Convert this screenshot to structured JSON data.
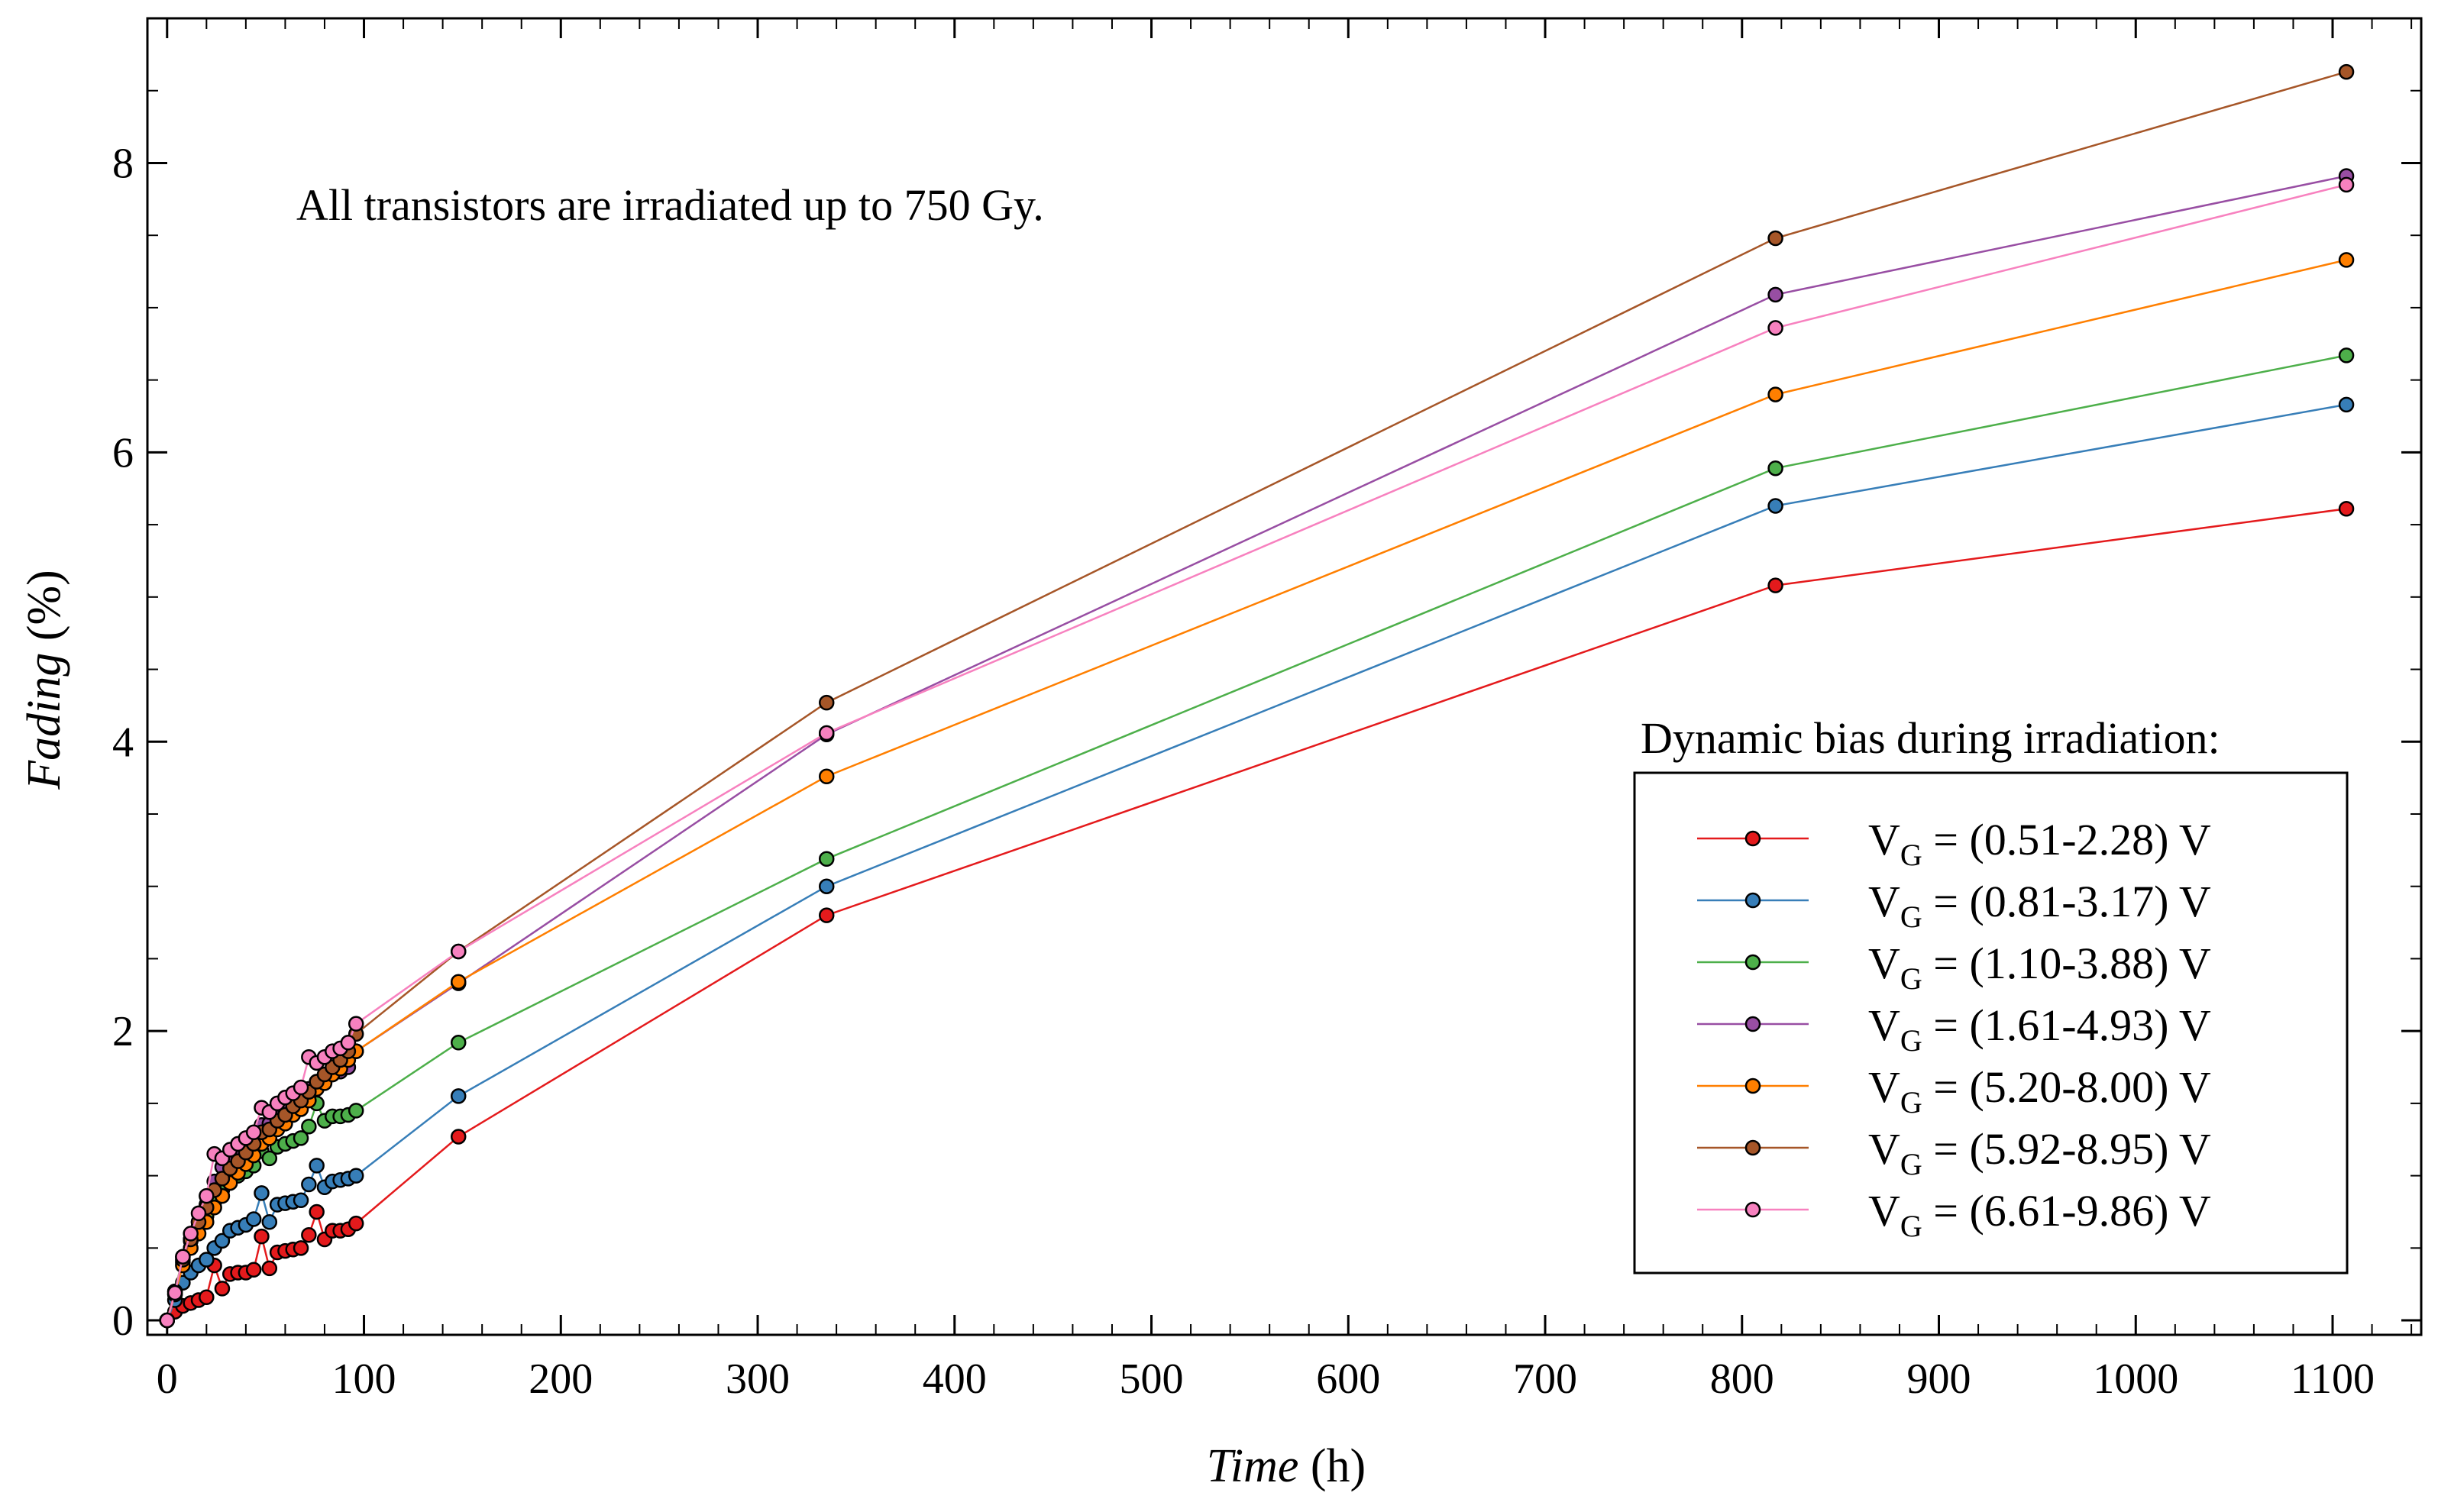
{
  "chart_data": {
    "type": "line",
    "title": "",
    "annotation": "All transistors are irradiated up to 750 Gy.",
    "xlabel": {
      "italic": "Time",
      "rest": " (h)"
    },
    "ylabel": {
      "italic": "Fading",
      "rest": " (%)"
    },
    "xlim": [
      -10,
      1145
    ],
    "ylim": [
      -0.1,
      9.0
    ],
    "xticks": [
      0,
      100,
      200,
      300,
      400,
      500,
      600,
      700,
      800,
      900,
      1000,
      1100
    ],
    "yticks": [
      0,
      2,
      4,
      6,
      8
    ],
    "legend_title": "Dynamic bias during irradiation:",
    "legend_position": "bottom-right",
    "x": [
      0,
      4,
      8,
      12,
      16,
      20,
      24,
      28,
      32,
      36,
      40,
      44,
      48,
      52,
      56,
      60,
      64,
      68,
      72,
      76,
      80,
      84,
      88,
      92,
      96,
      148,
      335,
      817,
      1107
    ],
    "series": [
      {
        "name": "(0.51-2.28)",
        "label_prefix": "V",
        "label_sub": "G",
        "label_text": " = (0.51-2.28) V",
        "color": "#e41a1c",
        "values": [
          0.0,
          0.06,
          0.1,
          0.12,
          0.14,
          0.16,
          0.38,
          0.22,
          0.32,
          0.33,
          0.33,
          0.35,
          0.58,
          0.36,
          0.47,
          0.48,
          0.49,
          0.5,
          0.59,
          0.75,
          0.56,
          0.62,
          0.62,
          0.63,
          0.67,
          1.27,
          2.8,
          5.08,
          5.61
        ]
      },
      {
        "name": "(0.81-3.17)",
        "label_prefix": "V",
        "label_sub": "G",
        "label_text": " = (0.81-3.17) V",
        "color": "#377eb8",
        "values": [
          0.0,
          0.14,
          0.26,
          0.33,
          0.38,
          0.42,
          0.5,
          0.55,
          0.62,
          0.64,
          0.66,
          0.7,
          0.88,
          0.68,
          0.8,
          0.81,
          0.82,
          0.83,
          0.94,
          1.07,
          0.92,
          0.96,
          0.97,
          0.98,
          1.0,
          1.55,
          3.0,
          5.63,
          6.33
        ]
      },
      {
        "name": "(1.10-3.88)",
        "label_prefix": "V",
        "label_sub": "G",
        "label_text": " = (1.10-3.88) V",
        "color": "#4daf4a",
        "values": [
          0.0,
          0.2,
          0.44,
          0.56,
          0.65,
          0.72,
          0.82,
          0.9,
          0.96,
          1.0,
          1.03,
          1.07,
          1.17,
          1.12,
          1.2,
          1.22,
          1.24,
          1.26,
          1.34,
          1.5,
          1.38,
          1.41,
          1.41,
          1.42,
          1.45,
          1.92,
          3.19,
          5.89,
          6.67
        ]
      },
      {
        "name": "(1.61-4.93)",
        "label_prefix": "V",
        "label_sub": "G",
        "label_text": " = (1.61-4.93) V",
        "color": "#984ea3",
        "values": [
          0.0,
          0.18,
          0.4,
          0.55,
          0.68,
          0.8,
          0.96,
          1.06,
          1.1,
          1.15,
          1.2,
          1.25,
          1.35,
          1.36,
          1.42,
          1.45,
          1.5,
          1.55,
          1.6,
          1.65,
          1.68,
          1.7,
          1.72,
          1.75,
          1.86,
          2.33,
          4.05,
          7.09,
          7.91
        ]
      },
      {
        "name": "(5.20-8.00)",
        "label_prefix": "V",
        "label_sub": "G",
        "label_text": " = (5.20-8.00) V",
        "color": "#ff7f00",
        "values": [
          0.0,
          0.18,
          0.38,
          0.5,
          0.6,
          0.68,
          0.78,
          0.86,
          0.95,
          1.02,
          1.08,
          1.14,
          1.22,
          1.26,
          1.32,
          1.36,
          1.42,
          1.46,
          1.52,
          1.6,
          1.64,
          1.7,
          1.74,
          1.8,
          1.86,
          2.34,
          3.76,
          6.4,
          7.33
        ]
      },
      {
        "name": "(5.92-8.95)",
        "label_prefix": "V",
        "label_sub": "G",
        "label_text": " = (5.92-8.95) V",
        "color": "#a65628",
        "values": [
          0.0,
          0.2,
          0.42,
          0.56,
          0.68,
          0.78,
          0.9,
          0.98,
          1.05,
          1.1,
          1.16,
          1.22,
          1.3,
          1.32,
          1.38,
          1.42,
          1.48,
          1.52,
          1.58,
          1.65,
          1.7,
          1.75,
          1.8,
          1.86,
          1.98,
          2.55,
          4.27,
          7.48,
          8.63
        ]
      },
      {
        "name": "(6.61-9.86)",
        "label_prefix": "V",
        "label_sub": "G",
        "label_text": " = (6.61-9.86) V",
        "color": "#f781bf",
        "values": [
          0.0,
          0.19,
          0.44,
          0.6,
          0.74,
          0.86,
          1.15,
          1.12,
          1.18,
          1.22,
          1.26,
          1.3,
          1.47,
          1.44,
          1.5,
          1.54,
          1.57,
          1.61,
          1.82,
          1.78,
          1.82,
          1.86,
          1.88,
          1.92,
          2.05,
          2.55,
          4.06,
          6.86,
          7.85
        ]
      }
    ]
  }
}
